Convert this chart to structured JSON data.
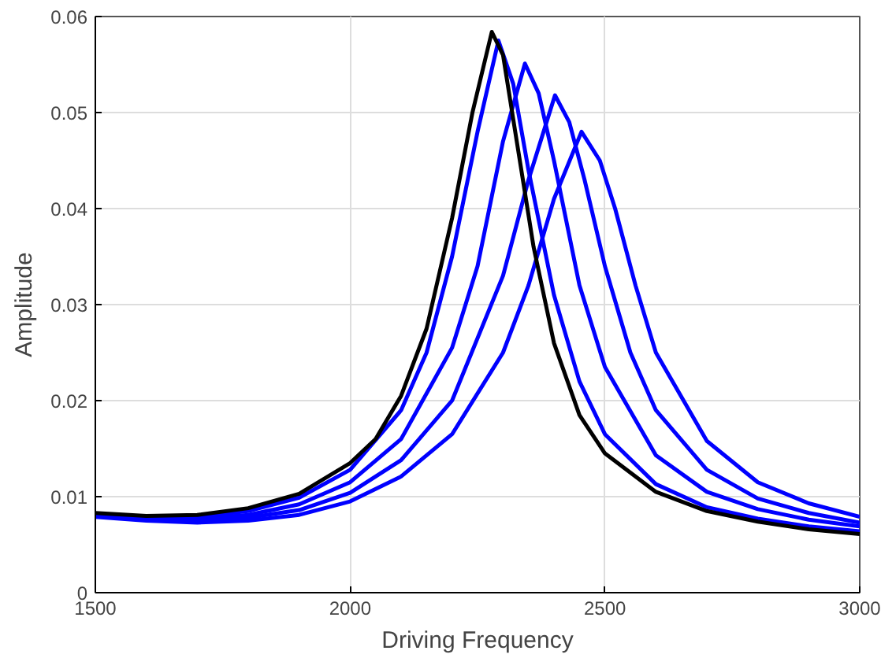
{
  "chart_data": {
    "type": "line",
    "xlabel": "Driving Frequency",
    "ylabel": "Amplitude",
    "xlim": [
      1500,
      3000
    ],
    "xticks": [
      1500,
      2000,
      2500,
      3000
    ],
    "ylim": [
      0,
      0.06
    ],
    "yticks": [
      0,
      0.01,
      0.02,
      0.03,
      0.04,
      0.05,
      0.06
    ],
    "grid": true,
    "line_style": "solid",
    "series": [
      {
        "color": "#0000ff",
        "x": [
          1500,
          1600,
          1700,
          1800,
          1900,
          2000,
          2100,
          2200,
          2300,
          2350,
          2400,
          2454,
          2490,
          2520,
          2560,
          2600,
          2700,
          2800,
          2900,
          3000
        ],
        "values": [
          0.0079,
          0.0075,
          0.0073,
          0.0075,
          0.0081,
          0.0095,
          0.0121,
          0.0165,
          0.025,
          0.032,
          0.041,
          0.048,
          0.045,
          0.04,
          0.032,
          0.025,
          0.0158,
          0.0115,
          0.0093,
          0.0079
        ]
      },
      {
        "color": "#0000ff",
        "x": [
          1500,
          1600,
          1700,
          1800,
          1900,
          2000,
          2100,
          2200,
          2300,
          2350,
          2402,
          2430,
          2460,
          2500,
          2550,
          2600,
          2700,
          2800,
          2900,
          3000
        ],
        "values": [
          0.008,
          0.0076,
          0.0075,
          0.0078,
          0.0086,
          0.0104,
          0.0138,
          0.02,
          0.033,
          0.043,
          0.0518,
          0.049,
          0.043,
          0.034,
          0.025,
          0.019,
          0.0128,
          0.0098,
          0.0083,
          0.0073
        ]
      },
      {
        "color": "#0000ff",
        "x": [
          1500,
          1600,
          1700,
          1800,
          1900,
          2000,
          2100,
          2200,
          2250,
          2300,
          2343,
          2370,
          2400,
          2450,
          2500,
          2600,
          2700,
          2800,
          2900,
          3000
        ],
        "values": [
          0.0081,
          0.0077,
          0.0077,
          0.0081,
          0.0092,
          0.0115,
          0.016,
          0.0255,
          0.034,
          0.047,
          0.0551,
          0.052,
          0.045,
          0.032,
          0.0235,
          0.0143,
          0.0105,
          0.0087,
          0.0076,
          0.0069
        ]
      },
      {
        "color": "#0000ff",
        "x": [
          1500,
          1600,
          1700,
          1800,
          1900,
          2000,
          2100,
          2150,
          2200,
          2250,
          2291,
          2320,
          2350,
          2400,
          2450,
          2500,
          2600,
          2700,
          2800,
          2900,
          3000
        ],
        "values": [
          0.0082,
          0.0079,
          0.0079,
          0.0085,
          0.0099,
          0.0128,
          0.019,
          0.025,
          0.035,
          0.048,
          0.0575,
          0.053,
          0.044,
          0.031,
          0.022,
          0.0165,
          0.0113,
          0.0089,
          0.0077,
          0.0069,
          0.0064
        ]
      },
      {
        "color": "#000000",
        "x": [
          1500,
          1600,
          1700,
          1800,
          1900,
          2000,
          2050,
          2100,
          2150,
          2200,
          2240,
          2278,
          2300,
          2330,
          2360,
          2400,
          2450,
          2500,
          2600,
          2700,
          2800,
          2900,
          3000
        ],
        "values": [
          0.0083,
          0.008,
          0.0081,
          0.0088,
          0.0103,
          0.0135,
          0.016,
          0.0205,
          0.0275,
          0.039,
          0.05,
          0.0584,
          0.056,
          0.046,
          0.036,
          0.026,
          0.0185,
          0.0145,
          0.0105,
          0.0085,
          0.0074,
          0.0066,
          0.0061
        ]
      }
    ]
  }
}
